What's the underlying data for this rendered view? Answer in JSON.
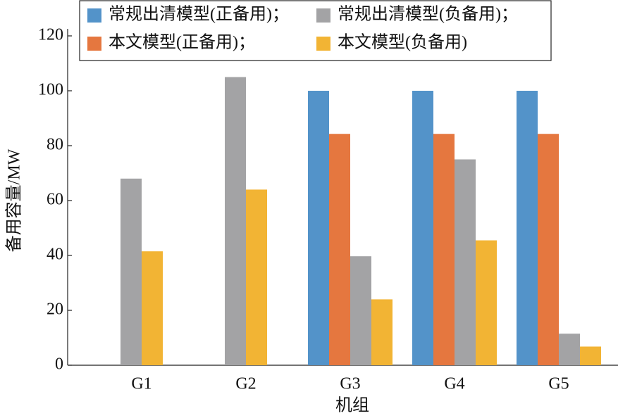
{
  "chart_data": {
    "type": "bar",
    "x_label": "机组",
    "y_label": "备用容量/MW",
    "categories": [
      "G1",
      "G2",
      "G3",
      "G4",
      "G5"
    ],
    "series": [
      {
        "name": "常规出清模型(正备用)；",
        "color": "#5393c9",
        "values": [
          null,
          null,
          100,
          100,
          100
        ]
      },
      {
        "name": "本文模型(正备用)；",
        "color": "#e5773f",
        "values": [
          null,
          null,
          84.3,
          84.3,
          84.3
        ]
      },
      {
        "name": "常规出清模型(负备用)；",
        "color": "#a3a3a5",
        "values": [
          68,
          105,
          39.7,
          75,
          11.5
        ]
      },
      {
        "name": "本文模型(负备用)",
        "color": "#f2b434",
        "values": [
          41.5,
          64,
          24,
          45.5,
          6.8
        ]
      }
    ],
    "ylim": [
      0,
      120
    ],
    "yticks": [
      0,
      20,
      40,
      60,
      80,
      100,
      120
    ],
    "grid": false
  }
}
